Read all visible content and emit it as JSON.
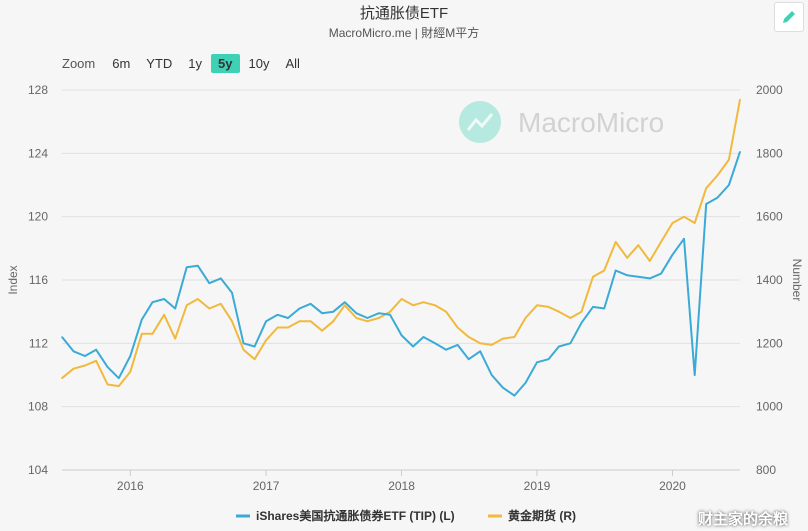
{
  "header": {
    "title": "抗通胀债ETF",
    "subtitle": "MacroMicro.me | 財經M平方"
  },
  "toolbar": {
    "zoom_label": "Zoom",
    "zoom_options": [
      "6m",
      "YTD",
      "1y",
      "5y",
      "10y",
      "All"
    ],
    "active_zoom": "5y",
    "edit_icon": "pencil-icon"
  },
  "watermark": {
    "logo_text": "MacroMicro",
    "footer_text": "财主家的余粮"
  },
  "colors": {
    "series_tip": "#3aaad6",
    "series_gold": "#f1b93d",
    "accent": "#3fd1b5",
    "grid": "#e0e0e0"
  },
  "chart_data": {
    "type": "line",
    "left_axis": {
      "label": "Index",
      "ticks": [
        "104",
        "108",
        "112",
        "116",
        "120",
        "124",
        "128"
      ],
      "range": [
        104,
        128
      ]
    },
    "right_axis": {
      "label": "Number",
      "ticks": [
        "800",
        "1000",
        "1200",
        "1400",
        "1600",
        "1800",
        "2000"
      ],
      "range": [
        800,
        2000
      ]
    },
    "x_axis": {
      "ticks": [
        "2016",
        "2017",
        "2018",
        "2019",
        "2020"
      ],
      "range": [
        "2015-07",
        "2020-07"
      ]
    },
    "series": [
      {
        "name": "iShares美国抗通胀债券ETF (TIP) (L)",
        "axis": "left",
        "x": [
          "2015-07",
          "2015-08",
          "2015-09",
          "2015-10",
          "2015-11",
          "2015-12",
          "2016-01",
          "2016-02",
          "2016-03",
          "2016-04",
          "2016-05",
          "2016-06",
          "2016-07",
          "2016-08",
          "2016-09",
          "2016-10",
          "2016-11",
          "2016-12",
          "2017-01",
          "2017-02",
          "2017-03",
          "2017-04",
          "2017-05",
          "2017-06",
          "2017-07",
          "2017-08",
          "2017-09",
          "2017-10",
          "2017-11",
          "2017-12",
          "2018-01",
          "2018-02",
          "2018-03",
          "2018-04",
          "2018-05",
          "2018-06",
          "2018-07",
          "2018-08",
          "2018-09",
          "2018-10",
          "2018-11",
          "2018-12",
          "2019-01",
          "2019-02",
          "2019-03",
          "2019-04",
          "2019-05",
          "2019-06",
          "2019-07",
          "2019-08",
          "2019-09",
          "2019-10",
          "2019-11",
          "2019-12",
          "2020-01",
          "2020-02",
          "2020-03",
          "2020-04",
          "2020-05",
          "2020-06",
          "2020-07"
        ],
        "values": [
          112.4,
          111.5,
          111.2,
          111.6,
          110.5,
          109.8,
          111.2,
          113.5,
          114.6,
          114.8,
          114.2,
          116.8,
          116.9,
          115.8,
          116.1,
          115.2,
          112.0,
          111.8,
          113.4,
          113.8,
          113.6,
          114.2,
          114.5,
          113.9,
          114.0,
          114.6,
          113.9,
          113.6,
          113.9,
          113.8,
          112.5,
          111.8,
          112.4,
          112.0,
          111.6,
          111.9,
          111.0,
          111.5,
          110.0,
          109.2,
          108.7,
          109.5,
          110.8,
          111.0,
          111.8,
          112.0,
          113.3,
          114.3,
          114.2,
          116.6,
          116.3,
          116.2,
          116.1,
          116.4,
          117.6,
          118.6,
          110.0,
          120.8,
          121.2,
          122.0,
          124.1
        ]
      },
      {
        "name": "黄金期货 (R)",
        "axis": "right",
        "x": [
          "2015-07",
          "2015-08",
          "2015-09",
          "2015-10",
          "2015-11",
          "2015-12",
          "2016-01",
          "2016-02",
          "2016-03",
          "2016-04",
          "2016-05",
          "2016-06",
          "2016-07",
          "2016-08",
          "2016-09",
          "2016-10",
          "2016-11",
          "2016-12",
          "2017-01",
          "2017-02",
          "2017-03",
          "2017-04",
          "2017-05",
          "2017-06",
          "2017-07",
          "2017-08",
          "2017-09",
          "2017-10",
          "2017-11",
          "2017-12",
          "2018-01",
          "2018-02",
          "2018-03",
          "2018-04",
          "2018-05",
          "2018-06",
          "2018-07",
          "2018-08",
          "2018-09",
          "2018-10",
          "2018-11",
          "2018-12",
          "2019-01",
          "2019-02",
          "2019-03",
          "2019-04",
          "2019-05",
          "2019-06",
          "2019-07",
          "2019-08",
          "2019-09",
          "2019-10",
          "2019-11",
          "2019-12",
          "2020-01",
          "2020-02",
          "2020-03",
          "2020-04",
          "2020-05",
          "2020-06",
          "2020-07"
        ],
        "values": [
          1090,
          1120,
          1130,
          1145,
          1070,
          1065,
          1110,
          1230,
          1230,
          1290,
          1215,
          1320,
          1340,
          1310,
          1325,
          1270,
          1180,
          1150,
          1210,
          1250,
          1250,
          1270,
          1270,
          1240,
          1270,
          1320,
          1280,
          1270,
          1280,
          1300,
          1340,
          1320,
          1330,
          1320,
          1300,
          1250,
          1220,
          1200,
          1195,
          1215,
          1220,
          1280,
          1320,
          1315,
          1300,
          1280,
          1300,
          1410,
          1430,
          1520,
          1470,
          1510,
          1460,
          1520,
          1580,
          1600,
          1580,
          1690,
          1730,
          1780,
          1970
        ]
      }
    ],
    "legend": "bottom-center",
    "grid": true
  }
}
